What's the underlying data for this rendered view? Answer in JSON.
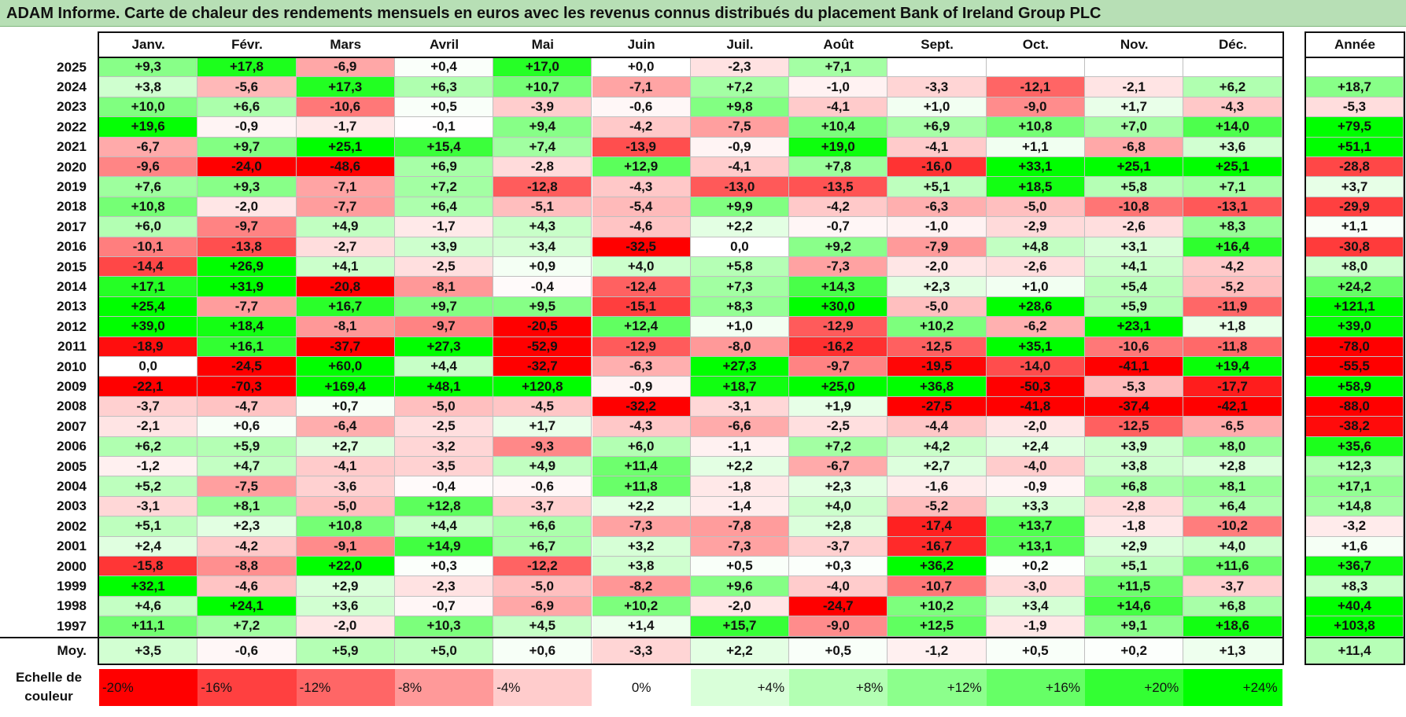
{
  "title": "ADAM Informe. Carte de chaleur des rendements mensuels en euros avec les revenus connus distribués du placement Bank of Ireland Group PLC",
  "chart_data": {
    "type": "heatmap",
    "months": [
      "Janv.",
      "Févr.",
      "Mars",
      "Avril",
      "Mai",
      "Juin",
      "Juil.",
      "Août",
      "Sept.",
      "Oct.",
      "Nov.",
      "Déc."
    ],
    "annual_label": "Année",
    "average_label": "Moy.",
    "rows": [
      {
        "year": "2025",
        "values": [
          "+9,3",
          "+17,8",
          "-6,9",
          "+0,4",
          "+17,0",
          "+0,0",
          "-2,3",
          "+7,1",
          "",
          "",
          "",
          ""
        ],
        "annual": ""
      },
      {
        "year": "2024",
        "values": [
          "+3,8",
          "-5,6",
          "+17,3",
          "+6,3",
          "+10,7",
          "-7,1",
          "+7,2",
          "-1,0",
          "-3,3",
          "-12,1",
          "-2,1",
          "+6,2"
        ],
        "annual": "+18,7"
      },
      {
        "year": "2023",
        "values": [
          "+10,0",
          "+6,6",
          "-10,6",
          "+0,5",
          "-3,9",
          "-0,6",
          "+9,8",
          "-4,1",
          "+1,0",
          "-9,0",
          "+1,7",
          "-4,3"
        ],
        "annual": "-5,3"
      },
      {
        "year": "2022",
        "values": [
          "+19,6",
          "-0,9",
          "-1,7",
          "-0,1",
          "+9,4",
          "-4,2",
          "-7,5",
          "+10,4",
          "+6,9",
          "+10,8",
          "+7,0",
          "+14,0"
        ],
        "annual": "+79,5"
      },
      {
        "year": "2021",
        "values": [
          "-6,7",
          "+9,7",
          "+25,1",
          "+15,4",
          "+7,4",
          "-13,9",
          "-0,9",
          "+19,0",
          "-4,1",
          "+1,1",
          "-6,8",
          "+3,6"
        ],
        "annual": "+51,1"
      },
      {
        "year": "2020",
        "values": [
          "-9,6",
          "-24,0",
          "-48,6",
          "+6,9",
          "-2,8",
          "+12,9",
          "-4,1",
          "+7,8",
          "-16,0",
          "+33,1",
          "+25,1",
          "+25,1"
        ],
        "annual": "-28,8"
      },
      {
        "year": "2019",
        "values": [
          "+7,6",
          "+9,3",
          "-7,1",
          "+7,2",
          "-12,8",
          "-4,3",
          "-13,0",
          "-13,5",
          "+5,1",
          "+18,5",
          "+5,8",
          "+7,1"
        ],
        "annual": "+3,7"
      },
      {
        "year": "2018",
        "values": [
          "+10,8",
          "-2,0",
          "-7,7",
          "+6,4",
          "-5,1",
          "-5,4",
          "+9,9",
          "-4,2",
          "-6,3",
          "-5,0",
          "-10,8",
          "-13,1"
        ],
        "annual": "-29,9"
      },
      {
        "year": "2017",
        "values": [
          "+6,0",
          "-9,7",
          "+4,9",
          "-1,7",
          "+4,3",
          "-4,6",
          "+2,2",
          "-0,7",
          "-1,0",
          "-2,9",
          "-2,6",
          "+8,3"
        ],
        "annual": "+1,1"
      },
      {
        "year": "2016",
        "values": [
          "-10,1",
          "-13,8",
          "-2,7",
          "+3,9",
          "+3,4",
          "-32,5",
          "0,0",
          "+9,2",
          "-7,9",
          "+4,8",
          "+3,1",
          "+16,4"
        ],
        "annual": "-30,8"
      },
      {
        "year": "2015",
        "values": [
          "-14,4",
          "+26,9",
          "+4,1",
          "-2,5",
          "+0,9",
          "+4,0",
          "+5,8",
          "-7,3",
          "-2,0",
          "-2,6",
          "+4,1",
          "-4,2"
        ],
        "annual": "+8,0"
      },
      {
        "year": "2014",
        "values": [
          "+17,1",
          "+31,9",
          "-20,8",
          "-8,1",
          "-0,4",
          "-12,4",
          "+7,3",
          "+14,3",
          "+2,3",
          "+1,0",
          "+5,4",
          "-5,2"
        ],
        "annual": "+24,2"
      },
      {
        "year": "2013",
        "values": [
          "+25,4",
          "-7,7",
          "+16,7",
          "+9,7",
          "+9,5",
          "-15,1",
          "+8,3",
          "+30,0",
          "-5,0",
          "+28,6",
          "+5,9",
          "-11,9"
        ],
        "annual": "+121,1"
      },
      {
        "year": "2012",
        "values": [
          "+39,0",
          "+18,4",
          "-8,1",
          "-9,7",
          "-20,5",
          "+12,4",
          "+1,0",
          "-12,9",
          "+10,2",
          "-6,2",
          "+23,1",
          "+1,8"
        ],
        "annual": "+39,0"
      },
      {
        "year": "2011",
        "values": [
          "-18,9",
          "+16,1",
          "-37,7",
          "+27,3",
          "-52,9",
          "-12,9",
          "-8,0",
          "-16,2",
          "-12,5",
          "+35,1",
          "-10,6",
          "-11,8"
        ],
        "annual": "-78,0"
      },
      {
        "year": "2010",
        "values": [
          "0,0",
          "-24,5",
          "+60,0",
          "+4,4",
          "-32,7",
          "-6,3",
          "+27,3",
          "-9,7",
          "-19,5",
          "-14,0",
          "-41,1",
          "+19,4"
        ],
        "annual": "-55,5"
      },
      {
        "year": "2009",
        "values": [
          "-22,1",
          "-70,3",
          "+169,4",
          "+48,1",
          "+120,8",
          "-0,9",
          "+18,7",
          "+25,0",
          "+36,8",
          "-50,3",
          "-5,3",
          "-17,7"
        ],
        "annual": "+58,9"
      },
      {
        "year": "2008",
        "values": [
          "-3,7",
          "-4,7",
          "+0,7",
          "-5,0",
          "-4,5",
          "-32,2",
          "-3,1",
          "+1,9",
          "-27,5",
          "-41,8",
          "-37,4",
          "-42,1"
        ],
        "annual": "-88,0"
      },
      {
        "year": "2007",
        "values": [
          "-2,1",
          "+0,6",
          "-6,4",
          "-2,5",
          "+1,7",
          "-4,3",
          "-6,6",
          "-2,5",
          "-4,4",
          "-2,0",
          "-12,5",
          "-6,5"
        ],
        "annual": "-38,2"
      },
      {
        "year": "2006",
        "values": [
          "+6,2",
          "+5,9",
          "+2,7",
          "-3,2",
          "-9,3",
          "+6,0",
          "-1,1",
          "+7,2",
          "+4,2",
          "+2,4",
          "+3,9",
          "+8,0"
        ],
        "annual": "+35,6"
      },
      {
        "year": "2005",
        "values": [
          "-1,2",
          "+4,7",
          "-4,1",
          "-3,5",
          "+4,9",
          "+11,4",
          "+2,2",
          "-6,7",
          "+2,7",
          "-4,0",
          "+3,8",
          "+2,8"
        ],
        "annual": "+12,3"
      },
      {
        "year": "2004",
        "values": [
          "+5,2",
          "-7,5",
          "-3,6",
          "-0,4",
          "-0,6",
          "+11,8",
          "-1,8",
          "+2,3",
          "-1,6",
          "-0,9",
          "+6,8",
          "+8,1"
        ],
        "annual": "+17,1"
      },
      {
        "year": "2003",
        "values": [
          "-3,1",
          "+8,1",
          "-5,0",
          "+12,8",
          "-3,7",
          "+2,2",
          "-1,4",
          "+4,0",
          "-5,2",
          "+3,3",
          "-2,8",
          "+6,4"
        ],
        "annual": "+14,8"
      },
      {
        "year": "2002",
        "values": [
          "+5,1",
          "+2,3",
          "+10,8",
          "+4,4",
          "+6,6",
          "-7,3",
          "-7,8",
          "+2,8",
          "-17,4",
          "+13,7",
          "-1,8",
          "-10,2"
        ],
        "annual": "-3,2"
      },
      {
        "year": "2001",
        "values": [
          "+2,4",
          "-4,2",
          "-9,1",
          "+14,9",
          "+6,7",
          "+3,2",
          "-7,3",
          "-3,7",
          "-16,7",
          "+13,1",
          "+2,9",
          "+4,0"
        ],
        "annual": "+1,6"
      },
      {
        "year": "2000",
        "values": [
          "-15,8",
          "-8,8",
          "+22,0",
          "+0,3",
          "-12,2",
          "+3,8",
          "+0,5",
          "+0,3",
          "+36,2",
          "+0,2",
          "+5,1",
          "+11,6"
        ],
        "annual": "+36,7"
      },
      {
        "year": "1999",
        "values": [
          "+32,1",
          "-4,6",
          "+2,9",
          "-2,3",
          "-5,0",
          "-8,2",
          "+9,6",
          "-4,0",
          "-10,7",
          "-3,0",
          "+11,5",
          "-3,7"
        ],
        "annual": "+8,3"
      },
      {
        "year": "1998",
        "values": [
          "+4,6",
          "+24,1",
          "+3,6",
          "-0,7",
          "-6,9",
          "+10,2",
          "-2,0",
          "-24,7",
          "+10,2",
          "+3,4",
          "+14,6",
          "+6,8"
        ],
        "annual": "+40,4"
      },
      {
        "year": "1997",
        "values": [
          "+11,1",
          "+7,2",
          "-2,0",
          "+10,3",
          "+4,5",
          "+1,4",
          "+15,7",
          "-9,0",
          "+12,5",
          "-1,9",
          "+9,1",
          "+18,6"
        ],
        "annual": "+103,8"
      }
    ],
    "average": {
      "values": [
        "+3,5",
        "-0,6",
        "+5,9",
        "+5,0",
        "+0,6",
        "-3,3",
        "+2,2",
        "+0,5",
        "-1,2",
        "+0,5",
        "+0,2",
        "+1,3"
      ],
      "annual": "+11,4"
    },
    "color_scale": {
      "label_line1": "Echelle de",
      "label_line2": "couleur",
      "stops": [
        {
          "label": "-20%",
          "value": -20,
          "color": "#ff0000"
        },
        {
          "label": "-16%",
          "value": -16,
          "color": "#ff4040"
        },
        {
          "label": "-12%",
          "value": -12,
          "color": "#ff6666"
        },
        {
          "label": "-8%",
          "value": -8,
          "color": "#ff9999"
        },
        {
          "label": "-4%",
          "value": -4,
          "color": "#ffcccc"
        },
        {
          "label": "0%",
          "value": 0,
          "color": "#ffffff"
        },
        {
          "label": "+4%",
          "value": 4,
          "color": "#d9ffd9"
        },
        {
          "label": "+8%",
          "value": 8,
          "color": "#b3ffb3"
        },
        {
          "label": "+12%",
          "value": 12,
          "color": "#8cff8c"
        },
        {
          "label": "+16%",
          "value": 16,
          "color": "#66ff66"
        },
        {
          "label": "+20%",
          "value": 20,
          "color": "#33ff33"
        },
        {
          "label": "+24%",
          "value": 24,
          "color": "#00ff00"
        }
      ]
    }
  }
}
